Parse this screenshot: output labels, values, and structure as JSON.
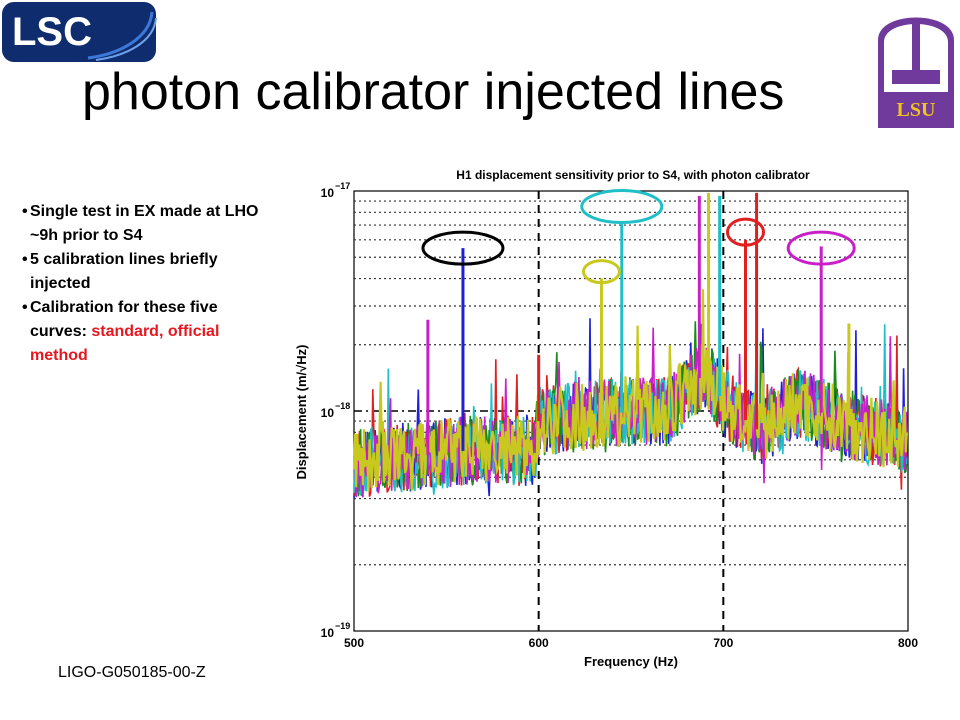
{
  "slide": {
    "title": "photon calibrator injected lines",
    "footer": "LIGO-G050185-00-Z",
    "logos": {
      "lsc": {
        "text": "LSC",
        "color": "#0f2d6e",
        "icon": "lsc-logo-icon"
      },
      "lsu": {
        "text": "LSU",
        "color": "#6f3a9c",
        "accent": "#f0c419",
        "icon": "lsu-seal-icon"
      }
    },
    "bullets": [
      {
        "text": "Single test in EX made at LHO ~9h prior to S4"
      },
      {
        "text": "5 calibration lines briefly injected"
      },
      {
        "text": "Calibration for these five curves: ",
        "highlight": "standard, official method",
        "highlight_color": "#e8171f"
      }
    ]
  },
  "chart_data": {
    "type": "line",
    "title": "H1 displacement sensitivity prior to S4, with photon calibrator",
    "xlabel": "Frequency (Hz)",
    "ylabel": "Displacement (m/√Hz)",
    "xlim": [
      500,
      800
    ],
    "ylim": [
      1e-19,
      1e-17
    ],
    "y_scale": "log",
    "x_ticks": [
      "500",
      "600",
      "700",
      "800"
    ],
    "y_ticks": [
      {
        "base": "10",
        "exp": "−17",
        "value": 1e-17
      },
      {
        "base": "10",
        "exp": "−18",
        "value": 1e-18
      },
      {
        "base": "10",
        "exp": "−19",
        "value": 1e-19
      }
    ],
    "grid": true,
    "series_colors": [
      "#1f1fd6",
      "#e11f1f",
      "#1a8a1a",
      "#1fbfc8",
      "#c81fc8",
      "#c8c81f"
    ],
    "baseline": [
      {
        "x": 500,
        "y": 5.8e-19
      },
      {
        "x": 540,
        "y": 6.3e-19
      },
      {
        "x": 560,
        "y": 6.6e-19
      },
      {
        "x": 598,
        "y": 6.6e-19
      },
      {
        "x": 600,
        "y": 9e-19
      },
      {
        "x": 640,
        "y": 9.8e-19
      },
      {
        "x": 670,
        "y": 1e-18
      },
      {
        "x": 690,
        "y": 1.5e-18
      },
      {
        "x": 700,
        "y": 1.1e-18
      },
      {
        "x": 720,
        "y": 8e-19
      },
      {
        "x": 740,
        "y": 1.1e-18
      },
      {
        "x": 770,
        "y": 8.5e-19
      },
      {
        "x": 800,
        "y": 7.5e-19
      }
    ],
    "peaks": [
      {
        "x": 540,
        "y": 2.6e-18,
        "color": "#c81fc8"
      },
      {
        "x": 559,
        "y": 5.5e-18,
        "color": "#1f1fd6"
      },
      {
        "x": 600,
        "y": 1.8e-18,
        "color": "#e11f1f"
      },
      {
        "x": 634,
        "y": 4e-18,
        "color": "#c8c81f"
      },
      {
        "x": 645,
        "y": 7.2e-18,
        "color": "#1fbfc8"
      },
      {
        "x": 687,
        "y": 9.5e-18,
        "color": "#c81fc8"
      },
      {
        "x": 692,
        "y": 9.8e-18,
        "color": "#c8c81f"
      },
      {
        "x": 698,
        "y": 9.5e-18,
        "color": "#1fbfc8"
      },
      {
        "x": 712,
        "y": 6e-18,
        "color": "#e11f1f"
      },
      {
        "x": 718,
        "y": 9.8e-18,
        "color": "#e11f1f"
      },
      {
        "x": 753,
        "y": 5.6e-18,
        "color": "#c81fc8"
      },
      {
        "x": 768,
        "y": 2.5e-18,
        "color": "#c8c81f"
      }
    ],
    "highlight_circles": [
      {
        "x": 559,
        "y": 5.5e-18,
        "color": "#000000"
      },
      {
        "x": 645,
        "y": 8.5e-18,
        "color": "#1fbfc8"
      },
      {
        "x": 634,
        "y": 4.3e-18,
        "color": "#c8c81f"
      },
      {
        "x": 712,
        "y": 6.5e-18,
        "color": "#e11f1f"
      },
      {
        "x": 753,
        "y": 5.5e-18,
        "color": "#c81fc8"
      }
    ],
    "reference_lines": {
      "vertical_dashed_x": [
        600,
        700
      ],
      "horizontal_dashdot_y": 1e-18
    }
  }
}
